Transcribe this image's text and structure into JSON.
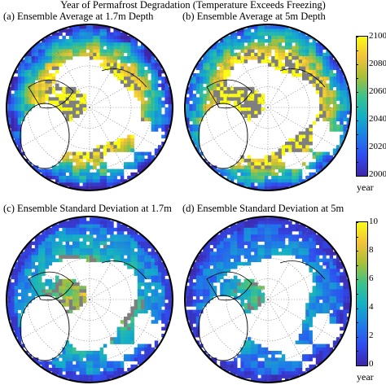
{
  "title": "Year of Permafrost Degradation (Temperature Exceeds Freezing)",
  "panels": [
    {
      "label": "(a) Ensemble Average at 1.7m Depth",
      "variable": "year",
      "scale": "year"
    },
    {
      "label": "(b) Ensemble Average at 5m Depth",
      "variable": "year",
      "scale": "year"
    },
    {
      "label": "(c) Ensemble Standard Deviation at 1.7m",
      "variable": "std",
      "scale": "std"
    },
    {
      "label": "(d) Ensemble Standard Deviation at 5m",
      "variable": "std",
      "scale": "std"
    }
  ],
  "colorbars": {
    "year": {
      "ticks": [
        "2100",
        "2080",
        "2060",
        "2040",
        "2020",
        "2000"
      ],
      "unit": "year",
      "min": 2000,
      "max": 2100
    },
    "std": {
      "ticks": [
        "10",
        "8",
        "6",
        "4",
        "2",
        "0"
      ],
      "unit": "year",
      "min": 0,
      "max": 10
    }
  },
  "colors": {
    "ocean": "#ffffff",
    "land_no_data": "#ffffff",
    "ice_gray": "#7f7f7f",
    "colormap": [
      "#3e26a8",
      "#2f4cf1",
      "#1d7fe6",
      "#13b0c6",
      "#3cc38b",
      "#a9bf38",
      "#f2c33a",
      "#f9fb15"
    ]
  }
}
